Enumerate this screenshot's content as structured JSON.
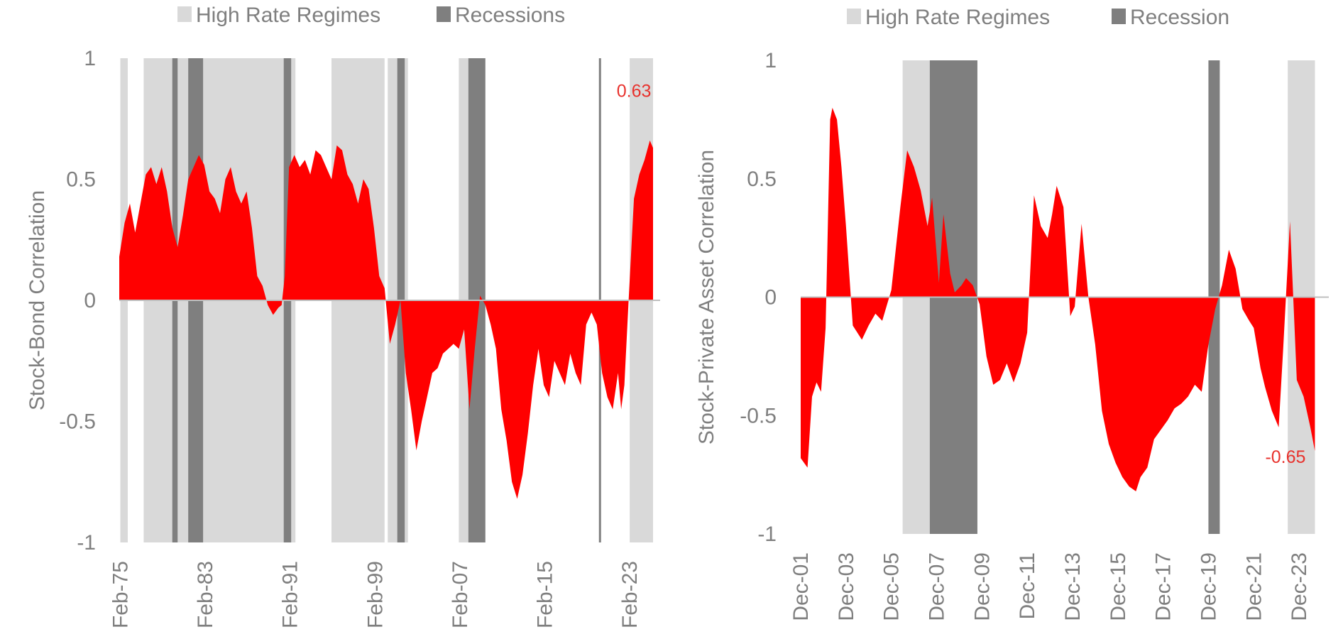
{
  "colors": {
    "area": "#ff0000",
    "high_rate": "#d9d9d9",
    "recession": "#7f7f7f",
    "text": "#7f7f7f",
    "annotation": "#e8322d",
    "zero_line": "#bfbfbf"
  },
  "chart_data": [
    {
      "type": "area",
      "title": "",
      "xlabel": "",
      "ylabel": "Stock-Bond Correlation",
      "ylim": [
        -1,
        1
      ],
      "yticks": [
        "1",
        "0.5",
        "0",
        "-0.5",
        "-1"
      ],
      "xlim": [
        1975.0,
        2025.3
      ],
      "xtick_labels": [
        "Feb-75",
        "Feb-83",
        "Feb-91",
        "Feb-99",
        "Feb-07",
        "Feb-15",
        "Feb-23"
      ],
      "xtick_years": [
        1975.1,
        1983.1,
        1991.1,
        1999.1,
        2007.1,
        2015.1,
        2023.1
      ],
      "legend": [
        {
          "label": "High Rate Regimes",
          "kind": "high_rate"
        },
        {
          "label": "Recessions",
          "kind": "recession"
        }
      ],
      "legend_position": "top",
      "annotation": {
        "text": "0.63",
        "x": 2023.5,
        "y": 0.84
      },
      "high_rate_regimes": [
        [
          1975.1,
          1975.8
        ],
        [
          1977.3,
          1991.6
        ],
        [
          1995.0,
          2000.0
        ],
        [
          2000.3,
          2002.2
        ],
        [
          2007.0,
          2008.3
        ],
        [
          2023.1,
          2025.3
        ]
      ],
      "recessions": [
        [
          1980.0,
          1980.5
        ],
        [
          1981.5,
          1982.9
        ],
        [
          1990.5,
          1991.2
        ],
        [
          2001.2,
          2001.9
        ],
        [
          2007.9,
          2009.5
        ],
        [
          2020.2,
          2020.4
        ]
      ],
      "x": [
        1975.0,
        1975.5,
        1976.0,
        1976.5,
        1977.0,
        1977.5,
        1978.0,
        1978.5,
        1979.0,
        1979.5,
        1980.0,
        1980.5,
        1981.0,
        1981.5,
        1982.0,
        1982.5,
        1983.0,
        1983.5,
        1984.0,
        1984.5,
        1985.0,
        1985.5,
        1986.0,
        1986.5,
        1987.0,
        1987.5,
        1988.0,
        1988.5,
        1989.0,
        1989.5,
        1990.0,
        1990.3,
        1990.6,
        1991.0,
        1991.5,
        1992.0,
        1992.5,
        1993.0,
        1993.5,
        1994.0,
        1994.5,
        1995.0,
        1995.5,
        1996.0,
        1996.5,
        1997.0,
        1997.5,
        1998.0,
        1998.5,
        1999.0,
        1999.5,
        2000.0,
        2000.5,
        2001.0,
        2001.5,
        2002.0,
        2002.5,
        2003.0,
        2003.5,
        2004.0,
        2004.5,
        2005.0,
        2005.5,
        2006.0,
        2006.5,
        2007.0,
        2007.5,
        2008.0,
        2008.5,
        2009.0,
        2009.5,
        2010.0,
        2010.5,
        2011.0,
        2011.5,
        2012.0,
        2012.5,
        2013.0,
        2013.5,
        2014.0,
        2014.5,
        2015.0,
        2015.5,
        2016.0,
        2016.5,
        2017.0,
        2017.5,
        2018.0,
        2018.5,
        2019.0,
        2019.5,
        2020.0,
        2020.5,
        2021.0,
        2021.5,
        2022.0,
        2022.3,
        2022.6,
        2023.0,
        2023.5,
        2024.0,
        2024.5,
        2025.0,
        2025.3
      ],
      "values": [
        0.18,
        0.32,
        0.4,
        0.28,
        0.4,
        0.52,
        0.55,
        0.48,
        0.55,
        0.45,
        0.3,
        0.22,
        0.35,
        0.5,
        0.55,
        0.6,
        0.56,
        0.45,
        0.42,
        0.36,
        0.5,
        0.55,
        0.45,
        0.4,
        0.45,
        0.3,
        0.1,
        0.06,
        -0.02,
        -0.06,
        -0.03,
        -0.02,
        0.1,
        0.55,
        0.6,
        0.55,
        0.58,
        0.52,
        0.62,
        0.6,
        0.55,
        0.5,
        0.64,
        0.62,
        0.52,
        0.48,
        0.4,
        0.5,
        0.46,
        0.3,
        0.1,
        0.05,
        -0.18,
        -0.1,
        0.0,
        -0.3,
        -0.45,
        -0.62,
        -0.5,
        -0.4,
        -0.3,
        -0.28,
        -0.22,
        -0.2,
        -0.18,
        -0.2,
        -0.12,
        -0.45,
        -0.2,
        0.02,
        -0.02,
        -0.1,
        -0.2,
        -0.45,
        -0.58,
        -0.75,
        -0.82,
        -0.72,
        -0.55,
        -0.35,
        -0.2,
        -0.35,
        -0.4,
        -0.25,
        -0.3,
        -0.35,
        -0.22,
        -0.3,
        -0.35,
        -0.1,
        -0.05,
        -0.1,
        -0.3,
        -0.4,
        -0.45,
        -0.3,
        -0.45,
        -0.35,
        0.0,
        0.42,
        0.52,
        0.58,
        0.66,
        0.63
      ]
    },
    {
      "type": "area",
      "title": "",
      "xlabel": "",
      "ylabel": "Stock-Private Asset Correlation",
      "ylim": [
        -1,
        1
      ],
      "yticks": [
        "1",
        "0.5",
        "0",
        "-0.5",
        "-1"
      ],
      "xlim": [
        2001.9,
        2024.9
      ],
      "xtick_labels": [
        "Dec-01",
        "Dec-03",
        "Dec-05",
        "Dec-07",
        "Dec-09",
        "Dec-11",
        "Dec-13",
        "Dec-15",
        "Dec-17",
        "Dec-19",
        "Dec-21",
        "Dec-23"
      ],
      "xtick_years": [
        2001.9,
        2003.9,
        2005.9,
        2007.9,
        2009.9,
        2011.9,
        2013.9,
        2015.9,
        2017.9,
        2019.9,
        2021.9,
        2023.9
      ],
      "legend": [
        {
          "label": "High Rate Regimes",
          "kind": "high_rate"
        },
        {
          "label": "Recession",
          "kind": "recession"
        }
      ],
      "legend_position": "top",
      "annotation": {
        "text": "-0.65",
        "x": 2023.3,
        "y": -0.7
      },
      "high_rate_regimes": [
        [
          2006.4,
          2009.7
        ],
        [
          2023.4,
          2024.6
        ]
      ],
      "recessions": [
        [
          2007.6,
          2009.7
        ],
        [
          2019.9,
          2020.4
        ]
      ],
      "x": [
        2001.9,
        2002.2,
        2002.4,
        2002.6,
        2002.8,
        2003.0,
        2003.2,
        2003.3,
        2003.5,
        2003.7,
        2003.9,
        2004.2,
        2004.6,
        2004.9,
        2005.2,
        2005.5,
        2005.9,
        2006.3,
        2006.6,
        2006.9,
        2007.2,
        2007.5,
        2007.7,
        2008.0,
        2008.2,
        2008.5,
        2008.7,
        2009.0,
        2009.2,
        2009.5,
        2009.8,
        2010.1,
        2010.4,
        2010.7,
        2011.0,
        2011.3,
        2011.6,
        2011.9,
        2012.2,
        2012.5,
        2012.8,
        2013.0,
        2013.2,
        2013.5,
        2013.8,
        2014.0,
        2014.3,
        2014.6,
        2014.9,
        2015.2,
        2015.5,
        2015.8,
        2016.1,
        2016.4,
        2016.7,
        2016.9,
        2017.2,
        2017.5,
        2017.8,
        2018.1,
        2018.4,
        2018.7,
        2019.0,
        2019.3,
        2019.6,
        2019.9,
        2020.2,
        2020.5,
        2020.8,
        2021.1,
        2021.4,
        2021.7,
        2021.9,
        2022.2,
        2022.4,
        2022.7,
        2023.0,
        2023.2,
        2023.5,
        2023.8,
        2024.1,
        2024.4,
        2024.6
      ],
      "values": [
        -0.68,
        -0.72,
        -0.42,
        -0.36,
        -0.4,
        -0.13,
        0.75,
        0.8,
        0.75,
        0.55,
        0.3,
        -0.12,
        -0.18,
        -0.12,
        -0.07,
        -0.1,
        0.03,
        0.38,
        0.62,
        0.55,
        0.45,
        0.3,
        0.42,
        0.06,
        0.35,
        0.1,
        0.02,
        0.05,
        0.08,
        0.05,
        -0.03,
        -0.25,
        -0.37,
        -0.35,
        -0.28,
        -0.36,
        -0.28,
        -0.15,
        0.43,
        0.3,
        0.25,
        0.35,
        0.47,
        0.38,
        -0.08,
        -0.04,
        0.31,
        0.0,
        -0.2,
        -0.48,
        -0.62,
        -0.7,
        -0.76,
        -0.8,
        -0.82,
        -0.76,
        -0.72,
        -0.6,
        -0.56,
        -0.52,
        -0.47,
        -0.45,
        -0.42,
        -0.37,
        -0.4,
        -0.2,
        -0.05,
        0.05,
        0.2,
        0.12,
        -0.05,
        -0.1,
        -0.13,
        -0.3,
        -0.38,
        -0.48,
        -0.55,
        -0.22,
        0.32,
        -0.35,
        -0.42,
        -0.55,
        -0.65
      ]
    }
  ]
}
